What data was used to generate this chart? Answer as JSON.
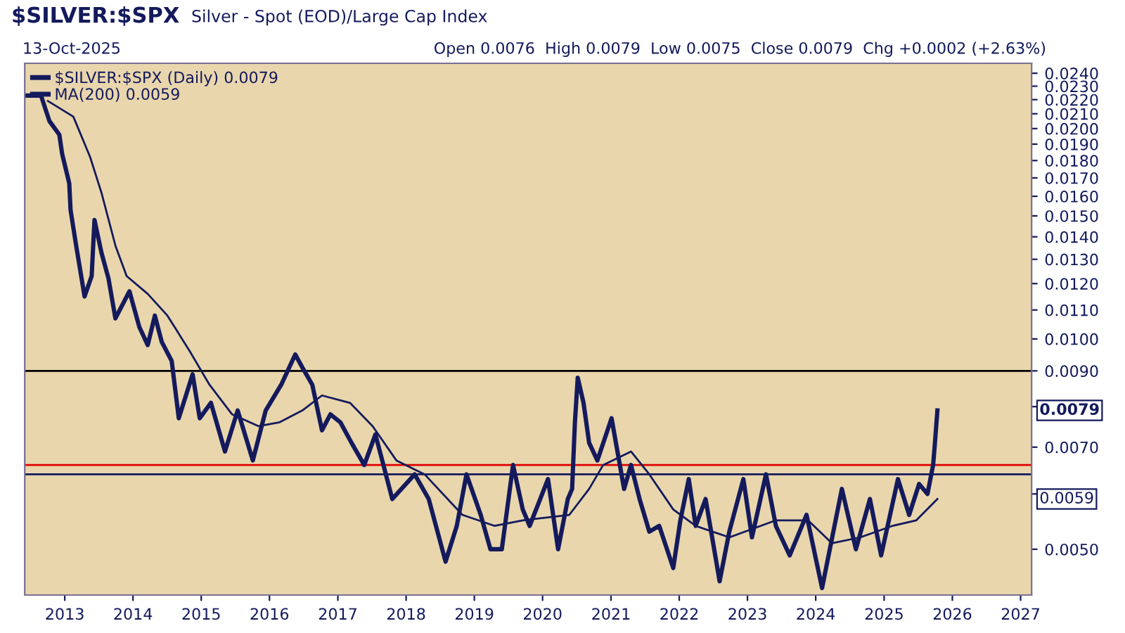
{
  "chart_data": {
    "type": "line",
    "title": "$SILVER:$SPX",
    "subtitle": "Silver - Spot (EOD)/Large Cap Index",
    "annotations": [
      "13-Oct-2025",
      "Open 0.0076  High 0.0079  Low 0.0075  Close 0.0079  Chg +0.0002 (+2.63%)",
      "0.0079",
      "0.0059"
    ],
    "series": [
      {
        "name": "$SILVER:$SPX (Daily) 0.0079",
        "color": "#141a5c",
        "x": [
          "2012-06-13",
          "2012-08-27",
          "2012-10-11",
          "2012-12-03",
          "2012-12-18",
          "2013-01-25",
          "2013-02-01",
          "2013-03-03",
          "2013-04-17",
          "2013-05-25",
          "2013-06-09",
          "2013-07-16",
          "2013-08-23",
          "2013-09-29",
          "2013-12-13",
          "2014-02-04",
          "2014-03-21",
          "2014-04-28",
          "2014-06-04",
          "2014-07-27",
          "2014-09-03",
          "2014-11-16",
          "2014-12-24",
          "2015-02-22",
          "2015-05-08",
          "2015-07-15",
          "2015-10-04",
          "2015-12-12",
          "2016-03-04",
          "2016-05-18",
          "2016-06-25",
          "2016-08-17",
          "2016-10-08",
          "2016-11-22",
          "2017-01-14",
          "2017-03-15",
          "2017-05-22",
          "2017-07-21",
          "2017-10-19",
          "2018-02-16",
          "2018-05-02",
          "2018-07-31",
          "2018-09-29",
          "2018-11-20",
          "2019-02-04",
          "2019-03-28",
          "2019-05-28",
          "2019-07-27",
          "2019-09-17",
          "2019-10-24",
          "2020-01-30",
          "2020-03-24",
          "2020-05-15",
          "2020-06-07",
          "2020-06-22",
          "2020-07-07",
          "2020-08-07",
          "2020-09-06",
          "2020-10-20",
          "2021-01-04",
          "2021-03-12",
          "2021-04-18",
          "2021-06-03",
          "2021-07-25",
          "2021-09-16",
          "2021-11-30",
          "2022-01-07",
          "2022-02-21",
          "2022-03-30",
          "2022-05-22",
          "2022-08-05",
          "2022-09-26",
          "2022-12-10",
          "2023-01-25",
          "2023-04-10",
          "2023-06-02",
          "2023-08-15",
          "2023-11-13",
          "2024-02-04",
          "2024-05-20",
          "2024-08-03",
          "2024-10-17",
          "2024-12-16",
          "2025-03-16",
          "2025-05-15",
          "2025-07-07",
          "2025-08-21",
          "2025-09-20",
          "2025-09-28",
          "2025-10-13"
        ],
        "values": [
          0.0223,
          0.0223,
          0.0205,
          0.0196,
          0.0184,
          0.0167,
          0.0153,
          0.0136,
          0.0115,
          0.0123,
          0.0148,
          0.0133,
          0.0122,
          0.0107,
          0.0117,
          0.0104,
          0.0098,
          0.0108,
          0.0099,
          0.0093,
          0.0077,
          0.0089,
          0.0077,
          0.0081,
          0.0069,
          0.0079,
          0.0067,
          0.0079,
          0.0086,
          0.0095,
          0.0091,
          0.0086,
          0.0074,
          0.0078,
          0.0076,
          0.0071,
          0.0066,
          0.0073,
          0.0059,
          0.0064,
          0.0059,
          0.0048,
          0.0054,
          0.0064,
          0.0056,
          0.005,
          0.005,
          0.0066,
          0.0057,
          0.0054,
          0.0063,
          0.005,
          0.0059,
          0.0061,
          0.0076,
          0.0088,
          0.0081,
          0.0071,
          0.0067,
          0.0077,
          0.0061,
          0.0066,
          0.0059,
          0.0053,
          0.0054,
          0.0047,
          0.0055,
          0.0063,
          0.0054,
          0.0059,
          0.0045,
          0.0053,
          0.0063,
          0.0052,
          0.0064,
          0.0054,
          0.0049,
          0.0056,
          0.0044,
          0.0061,
          0.005,
          0.0059,
          0.0049,
          0.0063,
          0.0056,
          0.0062,
          0.006,
          0.0066,
          0.007,
          0.0079
        ]
      },
      {
        "name": "MA(200) 0.0059",
        "color": "#141a5c",
        "x": [
          "2012-10-03",
          "2013-02-16",
          "2013-05-17",
          "2013-07-16",
          "2013-09-29",
          "2013-11-28",
          "2014-03-21",
          "2014-07-04",
          "2014-11-01",
          "2015-02-14",
          "2015-06-15",
          "2015-11-04",
          "2016-02-25",
          "2016-06-25",
          "2016-10-08",
          "2017-03-07",
          "2017-07-06",
          "2017-11-10",
          "2018-04-10",
          "2018-10-29",
          "2019-04-20",
          "2019-09-17",
          "2020-05-23",
          "2020-09-06",
          "2020-11-20",
          "2021-04-18",
          "2021-07-25",
          "2021-11-30",
          "2022-03-30",
          "2022-09-26",
          "2023-06-02",
          "2023-11-21",
          "2024-03-28",
          "2024-08-26",
          "2025-02-14",
          "2025-06-22",
          "2025-10-13"
        ],
        "values": [
          0.0219,
          0.0208,
          0.0182,
          0.0162,
          0.0136,
          0.0123,
          0.0116,
          0.0108,
          0.0096,
          0.0086,
          0.0078,
          0.0075,
          0.0076,
          0.0079,
          0.0083,
          0.0081,
          0.0075,
          0.0067,
          0.0064,
          0.0056,
          0.0054,
          0.0055,
          0.0056,
          0.0061,
          0.0066,
          0.0069,
          0.0064,
          0.0057,
          0.0054,
          0.0052,
          0.0055,
          0.0055,
          0.0051,
          0.0052,
          0.0054,
          0.0055,
          0.0059
        ]
      }
    ],
    "log": true,
    "ylim": [
      0.0043,
      0.0248
    ],
    "yticks": [
      {
        "value": 0.005,
        "label": "0.0050"
      },
      {
        "value": 0.006,
        "label": null
      },
      {
        "value": 0.007,
        "label": "0.0070"
      },
      {
        "value": 0.008,
        "label": null
      },
      {
        "value": 0.009,
        "label": "0.0090"
      },
      {
        "value": 0.01,
        "label": "0.0100"
      },
      {
        "value": 0.011,
        "label": "0.0110"
      },
      {
        "value": 0.012,
        "label": "0.0120"
      },
      {
        "value": 0.013,
        "label": "0.0130"
      },
      {
        "value": 0.014,
        "label": "0.0140"
      },
      {
        "value": 0.015,
        "label": "0.0150"
      },
      {
        "value": 0.016,
        "label": "0.0160"
      },
      {
        "value": 0.017,
        "label": "0.0170"
      },
      {
        "value": 0.018,
        "label": "0.0180"
      },
      {
        "value": 0.019,
        "label": "0.0190"
      },
      {
        "value": 0.02,
        "label": "0.0200"
      },
      {
        "value": 0.021,
        "label": "0.0210"
      },
      {
        "value": 0.022,
        "label": "0.0220"
      },
      {
        "value": 0.023,
        "label": "0.0230"
      },
      {
        "value": 0.024,
        "label": "0.0240"
      }
    ],
    "xlim": [
      "2012-06-01",
      "2027-03-01"
    ],
    "xticks": [
      {
        "value": "2013-01-01",
        "label": "2013"
      },
      {
        "value": "2014-01-01",
        "label": "2014"
      },
      {
        "value": "2015-01-01",
        "label": "2015"
      },
      {
        "value": "2016-01-01",
        "label": "2016"
      },
      {
        "value": "2017-01-01",
        "label": "2017"
      },
      {
        "value": "2018-01-01",
        "label": "2018"
      },
      {
        "value": "2019-01-01",
        "label": "2019"
      },
      {
        "value": "2020-01-01",
        "label": "2020"
      },
      {
        "value": "2021-01-01",
        "label": "2021"
      },
      {
        "value": "2022-01-01",
        "label": "2022"
      },
      {
        "value": "2023-01-01",
        "label": "2023"
      },
      {
        "value": "2024-01-01",
        "label": "2024"
      },
      {
        "value": "2025-01-01",
        "label": "2025"
      },
      {
        "value": "2026-01-01",
        "label": "2026"
      },
      {
        "value": "2027-01-01",
        "label": "2027"
      }
    ],
    "ref_lines": [
      {
        "axis": "y",
        "value": 0.009,
        "color": "#000000"
      },
      {
        "axis": "y",
        "value": 0.0066,
        "color": "#e00000"
      },
      {
        "axis": "y",
        "value": 0.0064,
        "color": "#141a5c"
      }
    ],
    "legend": "top left",
    "grid": false
  }
}
